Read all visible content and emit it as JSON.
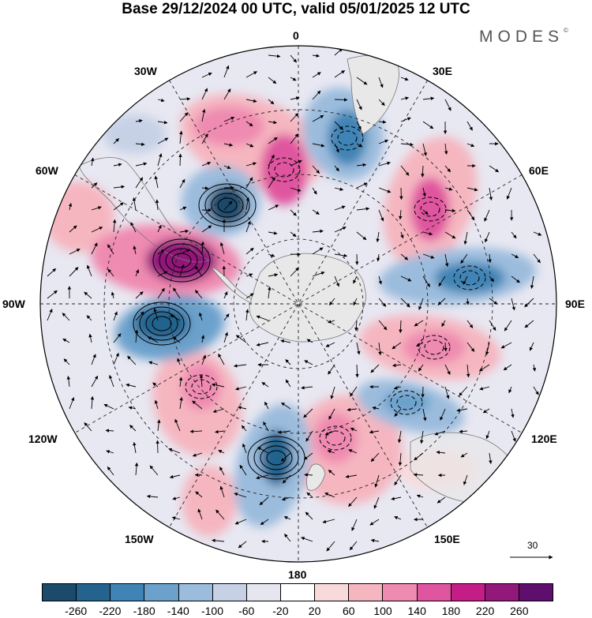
{
  "title": "Base 29/12/2024 00 UTC, valid 05/01/2025 12 UTC",
  "logo": "MODES",
  "logo_mark": "©",
  "longitude_labels": {
    "lon0": "0",
    "lon30e": "30E",
    "lon60e": "60E",
    "lon90e": "90E",
    "lon120e": "120E",
    "lon150e": "150E",
    "lon180": "180",
    "lon150w": "150W",
    "lon120w": "120W",
    "lon90w": "90W",
    "lon60w": "60W",
    "lon30w": "30W"
  },
  "reference_vector": "30",
  "colorbar": {
    "ticks": [
      "-260",
      "-220",
      "-180",
      "-140",
      "-100",
      "-60",
      "-20",
      "20",
      "60",
      "100",
      "140",
      "180",
      "220",
      "260"
    ],
    "colors": [
      "#1b4a6b",
      "#23638e",
      "#3f84b5",
      "#6ca1cc",
      "#9bbcdd",
      "#c6d1e6",
      "#e6e6f1",
      "#ffffff",
      "#f8dada",
      "#f5b6c0",
      "#ef8ab0",
      "#e0559f",
      "#c41d88",
      "#92187a",
      "#5e0f6d"
    ]
  },
  "colors": {
    "land": "#e8e8e8",
    "coast": "#777777",
    "grid": "#222222"
  }
}
